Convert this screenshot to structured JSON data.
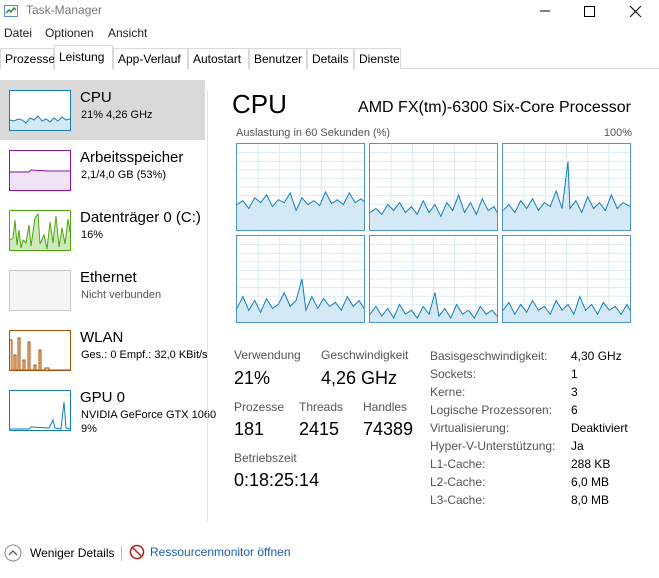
{
  "window": {
    "title": "Task-Manager",
    "icons": {
      "app": "task-manager-icon",
      "minimize": "minimize-icon",
      "maximize": "maximize-icon",
      "close": "close-icon"
    }
  },
  "menu": [
    "Datei",
    "Optionen",
    "Ansicht"
  ],
  "tabs": [
    "Prozesse",
    "Leistung",
    "App-Verlauf",
    "Autostart",
    "Benutzer",
    "Details",
    "Dienste"
  ],
  "active_tab": "Leistung",
  "sidebar": {
    "items": [
      {
        "title": "CPU",
        "subtitle": "21% 4,26 GHz",
        "color": "#117dbb"
      },
      {
        "title": "Arbeitsspeicher",
        "subtitle": "2,1/4,0 GB (53%)",
        "color": "#8b12ae"
      },
      {
        "title": "Datenträger 0 (C:)",
        "subtitle": "16%",
        "color": "#4da60c"
      },
      {
        "title": "Ethernet",
        "subtitle": "Nicht verbunden",
        "color": "#a74f01"
      },
      {
        "title": "WLAN",
        "subtitle": "Ges.: 0 Empf.: 32,0 KBit/s",
        "color": "#a74f01"
      },
      {
        "title": "GPU 0",
        "subtitle": "NVIDIA GeForce GTX 1060",
        "subtitle2": "9%",
        "color": "#117dbb"
      }
    ]
  },
  "main": {
    "title": "CPU",
    "model": "AMD FX(tm)-6300 Six-Core Processor",
    "graph_label": "Auslastung in 60 Sekunden (%)",
    "graph_max": "100%",
    "graph_color": "#117dbb",
    "stats": {
      "verwendung_label": "Verwendung",
      "verwendung_value": "21%",
      "geschwindigkeit_label": "Geschwindigkeit",
      "geschwindigkeit_value": "4,26 GHz",
      "prozesse_label": "Prozesse",
      "prozesse_value": "181",
      "threads_label": "Threads",
      "threads_value": "2415",
      "handles_label": "Handles",
      "handles_value": "74389",
      "betriebszeit_label": "Betriebszeit",
      "betriebszeit_value": "0:18:25:14"
    },
    "details": [
      {
        "key": "Basisgeschwindigkeit:",
        "value": "4,30 GHz"
      },
      {
        "key": "Sockets:",
        "value": "1"
      },
      {
        "key": "Kerne:",
        "value": "3"
      },
      {
        "key": "Logische Prozessoren:",
        "value": "6"
      },
      {
        "key": "Virtualisierung:",
        "value": "Deaktiviert"
      },
      {
        "key": "Hyper-V-Unterstützung:",
        "value": "Ja"
      },
      {
        "key": "L1-Cache:",
        "value": "288 KB"
      },
      {
        "key": "L2-Cache:",
        "value": "6,0 MB"
      },
      {
        "key": "L3-Cache:",
        "value": "8,0 MB"
      }
    ]
  },
  "footer": {
    "less_details": "Weniger Details",
    "resource_monitor": "Ressourcenmonitor öffnen",
    "icons": {
      "less": "chevron-up-circle-icon",
      "resmon": "resource-monitor-icon"
    }
  }
}
